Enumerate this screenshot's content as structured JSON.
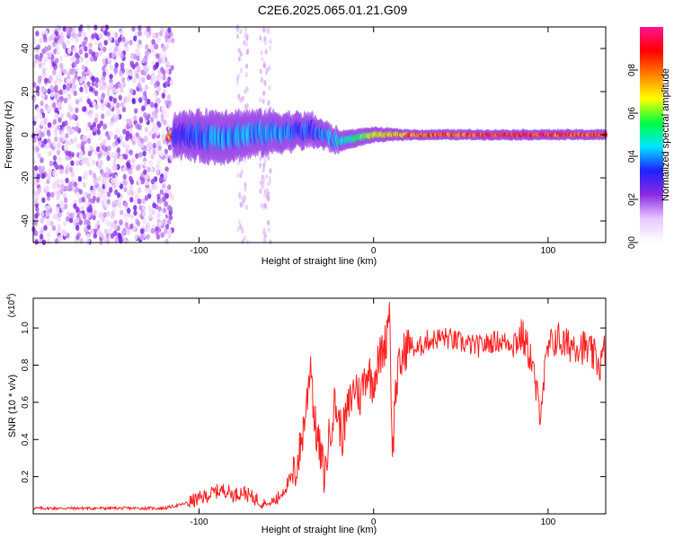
{
  "title": "C2E6.2025.065.01.21.G09",
  "chart_data": [
    {
      "type": "heatmap",
      "title": "C2E6.2025.065.01.21.G09",
      "xlabel": "Height of straight line (km)",
      "ylabel": "Frequency (Hz)",
      "xlim": [
        -195,
        133
      ],
      "ylim": [
        -50,
        50
      ],
      "xticks": [
        -100,
        0,
        100
      ],
      "xtick_labels": [
        "-100",
        "0",
        "100"
      ],
      "yticks": [
        -40,
        -20,
        0,
        20,
        40
      ],
      "ytick_labels": [
        "-40",
        "-20",
        "0",
        "20",
        "40"
      ],
      "colorbar": {
        "label": "Normalized spectral amplitude",
        "range": [
          0,
          1
        ],
        "ticks": [
          0.0,
          0.2,
          0.4,
          0.6,
          0.8
        ],
        "tick_labels": [
          "0.0",
          "0.2",
          "0.4",
          "0.6",
          "0.8"
        ],
        "colors": [
          "#ffffff",
          "#e8c8ff",
          "#8a2be2",
          "#2020ff",
          "#00e5ff",
          "#00ff40",
          "#ffff00",
          "#ff8000",
          "#ff0000",
          "#ff1493"
        ]
      },
      "ridge": [
        {
          "x": -115,
          "freq": 0,
          "amp": 0.35,
          "halfwidth": 4
        },
        {
          "x": -90,
          "freq": -1,
          "amp": 0.45,
          "halfwidth": 5
        },
        {
          "x": -60,
          "freq": 1,
          "amp": 0.45,
          "halfwidth": 4
        },
        {
          "x": -35,
          "freq": 2,
          "amp": 0.4,
          "halfwidth": 3
        },
        {
          "x": -20,
          "freq": -3,
          "amp": 0.5,
          "halfwidth": 2
        },
        {
          "x": 0,
          "freq": 0,
          "amp": 0.7,
          "halfwidth": 1.5
        },
        {
          "x": 20,
          "freq": 0,
          "amp": 0.9,
          "halfwidth": 1
        },
        {
          "x": 80,
          "freq": 0,
          "amp": 1.0,
          "halfwidth": 1
        },
        {
          "x": 133,
          "freq": 0,
          "amp": 0.95,
          "halfwidth": 1
        }
      ],
      "noise_region": {
        "x_from": -195,
        "x_to": -115,
        "freq_range": [
          -50,
          50
        ],
        "amp": 0.3
      }
    },
    {
      "type": "line",
      "xlabel": "Height of straight line (km)",
      "ylabel": "SNR (10 * v/v)",
      "scale_label": "(x10",
      "scale_exponent": "4",
      "scale_close": ")",
      "xlim": [
        -195,
        133
      ],
      "ylim": [
        0,
        1.16
      ],
      "xticks": [
        -100,
        0,
        100
      ],
      "xtick_labels": [
        "-100",
        "0",
        "100"
      ],
      "yticks": [
        0.2,
        0.4,
        0.6,
        0.8,
        1.0
      ],
      "ytick_labels": [
        "0.2",
        "0.4",
        "0.6",
        "0.8",
        "1.0"
      ],
      "line_color": "#ff2020",
      "series": [
        {
          "name": "SNR",
          "x": [
            -195,
            -150,
            -120,
            -110,
            -100,
            -95,
            -90,
            -85,
            -80,
            -75,
            -70,
            -65,
            -60,
            -55,
            -50,
            -45,
            -42,
            -40,
            -38,
            -36,
            -34,
            -32,
            -30,
            -28,
            -25,
            -22,
            -20,
            -18,
            -15,
            -12,
            -10,
            -8,
            -5,
            -3,
            -1,
            1,
            3,
            5,
            7,
            9,
            10,
            11,
            12,
            14,
            16,
            18,
            20,
            22,
            25,
            30,
            40,
            50,
            60,
            70,
            80,
            85,
            90,
            95,
            100,
            105,
            110,
            115,
            120,
            125,
            130,
            133
          ],
          "y": [
            0.03,
            0.03,
            0.03,
            0.05,
            0.08,
            0.1,
            0.12,
            0.13,
            0.1,
            0.12,
            0.09,
            0.07,
            0.05,
            0.08,
            0.15,
            0.22,
            0.35,
            0.48,
            0.62,
            0.85,
            0.5,
            0.4,
            0.3,
            0.2,
            0.45,
            0.6,
            0.5,
            0.42,
            0.55,
            0.65,
            0.7,
            0.62,
            0.74,
            0.78,
            0.7,
            0.76,
            0.82,
            0.88,
            0.92,
            1.15,
            0.7,
            0.28,
            0.6,
            0.76,
            0.82,
            0.88,
            0.92,
            0.9,
            0.88,
            0.93,
            0.95,
            0.92,
            0.9,
            0.93,
            0.92,
            0.96,
            0.85,
            0.55,
            0.88,
            0.95,
            0.9,
            0.92,
            0.9,
            0.86,
            0.8,
            0.9
          ]
        }
      ]
    }
  ]
}
